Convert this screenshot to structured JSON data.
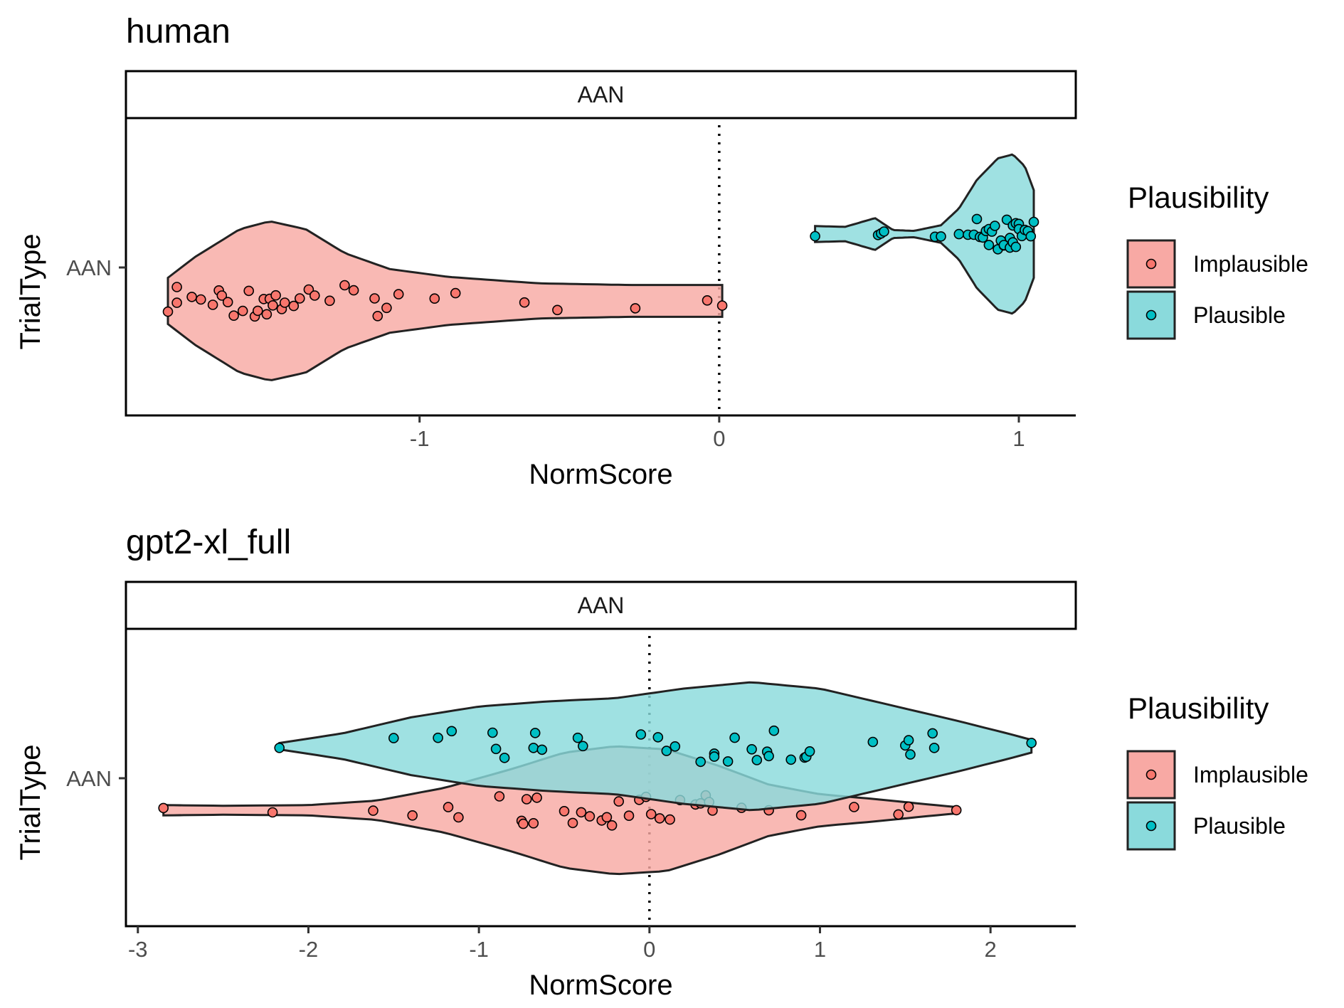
{
  "chart_data": [
    {
      "type": "violin",
      "title": "human",
      "facet_label": "AAN",
      "xlabel": "NormScore",
      "ylabel": "TrialType",
      "y_categories": [
        "AAN"
      ],
      "xlim": [
        -1.98,
        1.19
      ],
      "x_ticks": [
        -1,
        0,
        1
      ],
      "x_tick_labels": [
        "-1",
        "0",
        "1"
      ],
      "reference_line": {
        "x": 0,
        "style": "dotted"
      },
      "legend": {
        "title": "Plausibility",
        "position": "right",
        "entries": [
          "Implausible",
          "Plausible"
        ]
      },
      "series": [
        {
          "name": "Implausible",
          "color": "#F8766D",
          "fill": "#F8A9A4",
          "range": [
            -1.84,
            0.01
          ],
          "density": [
            [
              -1.84,
              0.29
            ],
            [
              -1.75,
              0.55
            ],
            [
              -1.6,
              0.9
            ],
            [
              -1.5,
              1.0
            ],
            [
              -1.38,
              0.9
            ],
            [
              -1.25,
              0.6
            ],
            [
              -1.1,
              0.4
            ],
            [
              -0.9,
              0.3
            ],
            [
              -0.6,
              0.22
            ],
            [
              -0.3,
              0.2
            ],
            [
              0.0,
              0.2
            ],
            [
              0.01,
              0.2
            ]
          ],
          "points": [
            -1.84,
            -1.81,
            -1.81,
            -1.76,
            -1.73,
            -1.69,
            -1.67,
            -1.66,
            -1.64,
            -1.62,
            -1.59,
            -1.57,
            -1.55,
            -1.54,
            -1.52,
            -1.51,
            -1.5,
            -1.49,
            -1.48,
            -1.46,
            -1.45,
            -1.42,
            -1.4,
            -1.37,
            -1.35,
            -1.3,
            -1.25,
            -1.22,
            -1.15,
            -1.14,
            -1.11,
            -1.07,
            -0.95,
            -0.88,
            -0.65,
            -0.54,
            -0.28,
            -0.04,
            0.01
          ]
        },
        {
          "name": "Plausible",
          "color": "#00BFC4",
          "fill": "#8ADADC",
          "range": [
            0.32,
            1.05
          ],
          "density": [
            [
              0.32,
              0.1
            ],
            [
              0.42,
              0.09
            ],
            [
              0.52,
              0.2
            ],
            [
              0.58,
              0.05
            ],
            [
              0.65,
              0.04
            ],
            [
              0.74,
              0.11
            ],
            [
              0.8,
              0.32
            ],
            [
              0.86,
              0.68
            ],
            [
              0.93,
              0.95
            ],
            [
              0.98,
              1.0
            ],
            [
              1.02,
              0.85
            ],
            [
              1.05,
              0.55
            ]
          ],
          "points": [
            0.32,
            0.53,
            0.54,
            0.55,
            0.72,
            0.74,
            0.8,
            0.83,
            0.85,
            0.86,
            0.87,
            0.88,
            0.89,
            0.9,
            0.9,
            0.91,
            0.92,
            0.93,
            0.94,
            0.95,
            0.95,
            0.96,
            0.97,
            0.97,
            0.98,
            0.98,
            0.99,
            0.99,
            1.0,
            1.0,
            1.01,
            1.02,
            1.03,
            1.04,
            1.05
          ]
        }
      ]
    },
    {
      "type": "violin",
      "title": "gpt2-xl_full",
      "facet_label": "AAN",
      "xlabel": "NormScore",
      "ylabel": "TrialType",
      "y_categories": [
        "AAN"
      ],
      "xlim": [
        -3.07,
        2.5
      ],
      "x_ticks": [
        -3,
        -2,
        -1,
        0,
        1,
        2
      ],
      "x_tick_labels": [
        "-3",
        "-2",
        "-1",
        "0",
        "1",
        "2"
      ],
      "reference_line": {
        "x": 0,
        "style": "dotted"
      },
      "legend": {
        "title": "Plausibility",
        "position": "right",
        "entries": [
          "Implausible",
          "Plausible"
        ]
      },
      "series": [
        {
          "name": "Implausible",
          "color": "#F8766D",
          "fill": "#F8A9A4",
          "range": [
            -2.85,
            1.8
          ],
          "density": [
            [
              -2.85,
              0.08
            ],
            [
              -2.5,
              0.07
            ],
            [
              -2.0,
              0.08
            ],
            [
              -1.6,
              0.15
            ],
            [
              -1.2,
              0.35
            ],
            [
              -0.8,
              0.65
            ],
            [
              -0.5,
              0.9
            ],
            [
              -0.2,
              1.0
            ],
            [
              0.1,
              0.95
            ],
            [
              0.4,
              0.7
            ],
            [
              0.7,
              0.4
            ],
            [
              1.0,
              0.25
            ],
            [
              1.3,
              0.18
            ],
            [
              1.6,
              0.1
            ],
            [
              1.8,
              0.05
            ]
          ],
          "points": [
            -2.85,
            -2.21,
            -1.62,
            -1.39,
            -1.18,
            -1.12,
            -0.88,
            -0.75,
            -0.74,
            -0.72,
            -0.68,
            -0.66,
            -0.5,
            -0.45,
            -0.4,
            -0.35,
            -0.28,
            -0.25,
            -0.22,
            -0.18,
            -0.12,
            -0.06,
            -0.02,
            0.01,
            0.06,
            0.12,
            0.18,
            0.27,
            0.3,
            0.33,
            0.35,
            0.37,
            0.54,
            0.7,
            0.89,
            1.2,
            1.46,
            1.52,
            1.8
          ]
        },
        {
          "name": "Plausible",
          "color": "#00BFC4",
          "fill": "#8ADADC",
          "range": [
            -2.17,
            2.24
          ],
          "density": [
            [
              -2.17,
              0.05
            ],
            [
              -1.8,
              0.2
            ],
            [
              -1.4,
              0.45
            ],
            [
              -1.0,
              0.62
            ],
            [
              -0.6,
              0.7
            ],
            [
              -0.2,
              0.75
            ],
            [
              0.2,
              0.9
            ],
            [
              0.6,
              1.0
            ],
            [
              1.0,
              0.9
            ],
            [
              1.4,
              0.65
            ],
            [
              1.8,
              0.4
            ],
            [
              2.1,
              0.2
            ],
            [
              2.24,
              0.1
            ]
          ],
          "points": [
            -2.17,
            -1.5,
            -1.24,
            -1.16,
            -0.92,
            -0.9,
            -0.85,
            -0.68,
            -0.67,
            -0.63,
            -0.42,
            -0.39,
            -0.05,
            0.05,
            0.1,
            0.15,
            0.3,
            0.38,
            0.38,
            0.46,
            0.5,
            0.6,
            0.63,
            0.69,
            0.7,
            0.73,
            0.83,
            0.91,
            0.92,
            0.94,
            1.31,
            1.5,
            1.52,
            1.53,
            1.66,
            1.67,
            2.24
          ]
        }
      ]
    }
  ]
}
